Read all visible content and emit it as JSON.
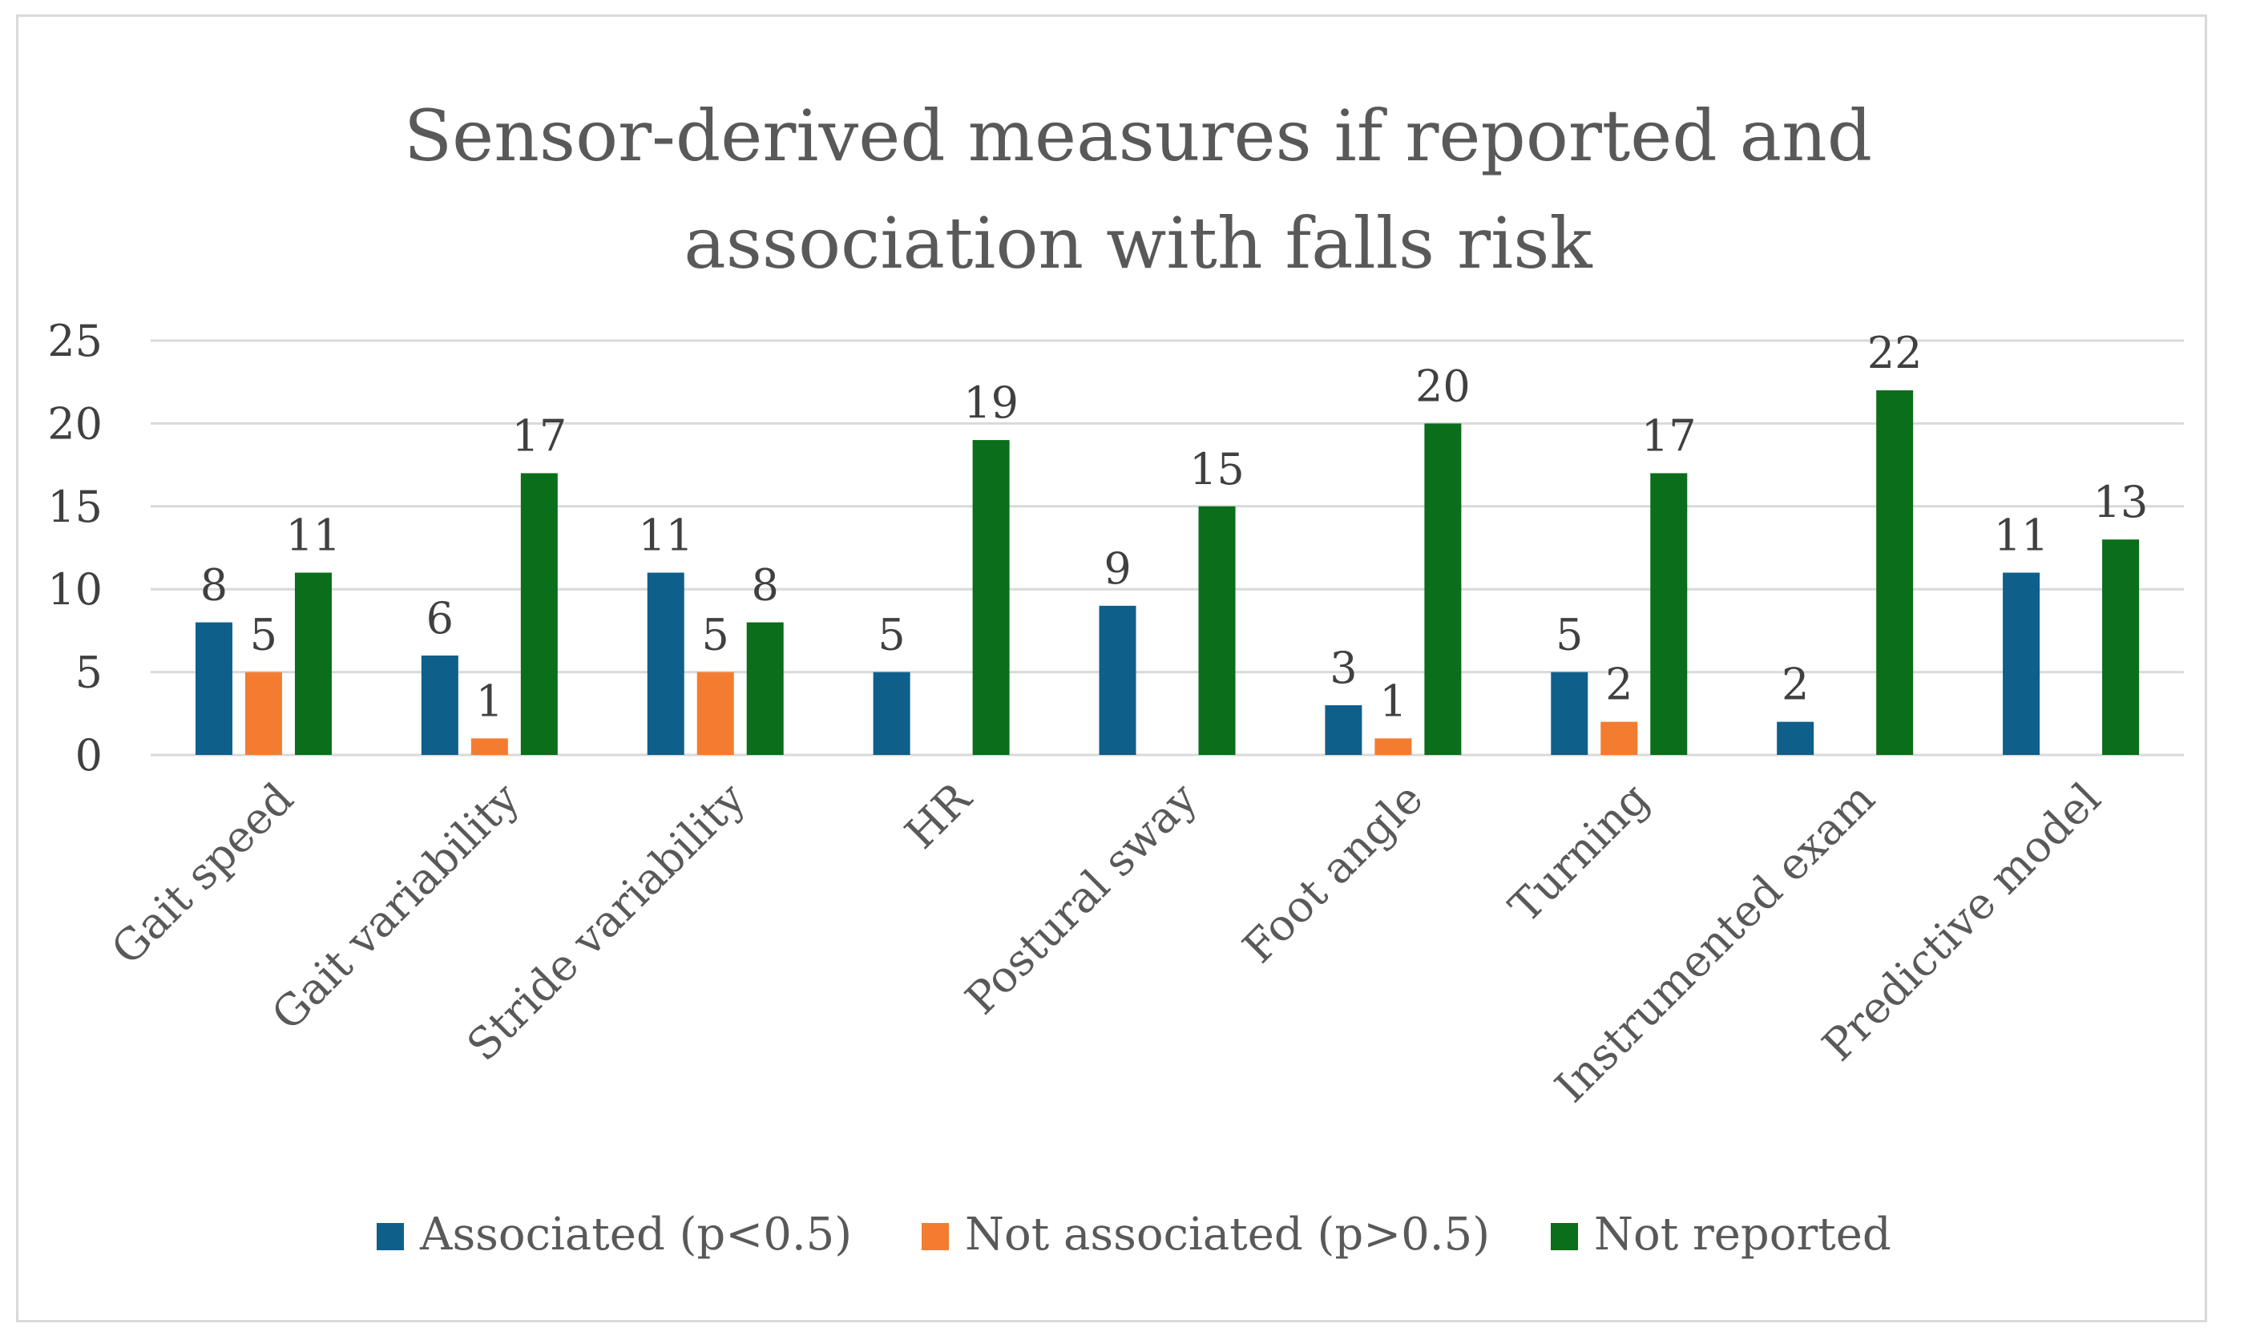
{
  "chart_data": {
    "type": "bar",
    "title_lines": [
      "Sensor-derived measures if reported and",
      "association with falls risk"
    ],
    "categories": [
      "Gait speed",
      "Gait variability",
      "Stride variability",
      "HR",
      "Postural sway",
      "Foot angle",
      "Turning",
      "Instrumented exam",
      "Predictive model"
    ],
    "series": [
      {
        "name": "Associated (p<0.5)",
        "color": "#0f5f8b",
        "values": [
          8,
          6,
          11,
          5,
          9,
          3,
          5,
          2,
          11
        ]
      },
      {
        "name": "Not associated (p>0.5)",
        "color": "#f47c30",
        "values": [
          5,
          1,
          5,
          null,
          null,
          1,
          2,
          null,
          null
        ]
      },
      {
        "name": "Not reported",
        "color": "#0a6e1a",
        "values": [
          11,
          17,
          8,
          19,
          15,
          20,
          17,
          22,
          13
        ]
      }
    ],
    "ylim": [
      0,
      25
    ],
    "yticks": [
      0,
      5,
      10,
      15,
      20,
      25
    ],
    "xlabel": "",
    "ylabel": "",
    "grid": true,
    "legend": "bottom",
    "gridColor": "#d9d9d9"
  }
}
